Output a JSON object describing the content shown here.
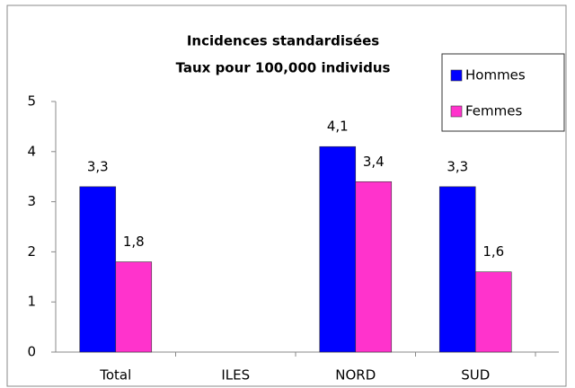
{
  "chart_data": {
    "type": "bar",
    "title": "Incidences standardisées",
    "subtitle": "Taux pour 100,000 individus",
    "categories": [
      "Total",
      "ILES",
      "NORD",
      "SUD"
    ],
    "series": [
      {
        "name": "Hommes",
        "color": "#0000ff",
        "values": [
          3.3,
          null,
          4.1,
          3.3
        ],
        "value_labels": [
          "3,3",
          null,
          "4,1",
          "3,3"
        ]
      },
      {
        "name": "Femmes",
        "color": "#ff33cc",
        "values": [
          1.8,
          null,
          3.4,
          1.6
        ],
        "value_labels": [
          "1,8",
          null,
          "3,4",
          "1,6"
        ]
      }
    ],
    "ylim": [
      0,
      5
    ],
    "yticks": [
      0,
      1,
      2,
      3,
      4,
      5
    ],
    "grid": false,
    "legend": "upper right"
  }
}
